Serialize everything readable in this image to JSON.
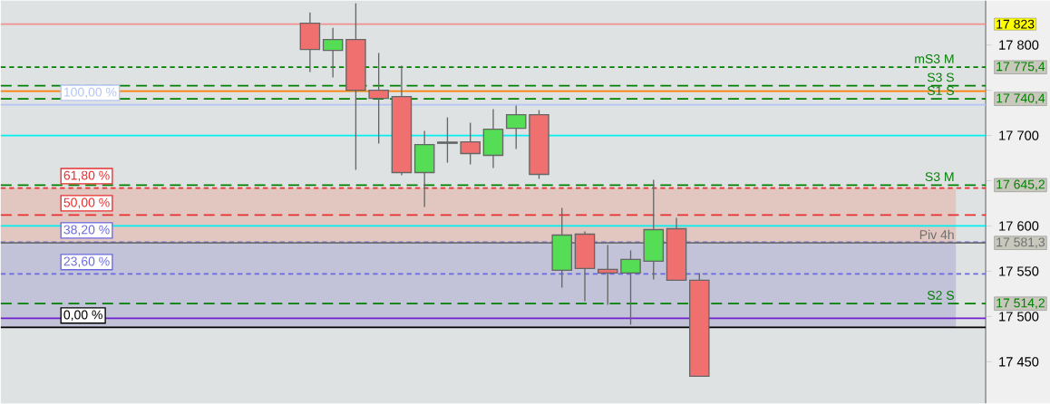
{
  "chart_data": {
    "type": "candlestick",
    "categories": [
      null,
      null,
      null,
      null,
      null,
      null,
      null,
      null,
      null,
      null,
      null,
      null,
      null,
      null,
      null,
      null,
      null,
      null,
      null,
      null,
      null,
      null,
      null,
      null,
      null,
      null,
      null,
      null,
      null,
      null,
      null,
      null,
      null,
      null,
      null,
      null,
      null,
      null,
      null,
      null,
      null,
      null,
      null
    ],
    "ohlc": [
      null,
      null,
      null,
      null,
      null,
      null,
      null,
      null,
      null,
      null,
      null,
      null,
      null,
      [
        17824,
        17836,
        17770,
        17795
      ],
      [
        17794,
        17819,
        17764,
        17806
      ],
      [
        17806,
        17846,
        17662,
        17750
      ],
      [
        17750,
        17791,
        17691,
        17741
      ],
      [
        17743,
        17777,
        17656,
        17659
      ],
      [
        17659,
        17705,
        17621,
        17690
      ],
      [
        17692,
        17720,
        17670,
        17692
      ],
      [
        17693,
        17714,
        17668,
        17680
      ],
      [
        17678,
        17729,
        17664,
        17707
      ],
      [
        17708,
        17733,
        17685,
        17723
      ],
      [
        17723,
        17728,
        17652,
        17657
      ],
      [
        17551,
        17620,
        17532,
        17590
      ],
      [
        17591,
        17594,
        17517,
        17553
      ],
      [
        17552,
        17579,
        17513,
        17548
      ],
      [
        17548,
        17573,
        17491,
        17563
      ],
      [
        17561,
        17651,
        17541,
        17596
      ],
      [
        17597,
        17609,
        17540,
        17540
      ],
      [
        17540,
        17548,
        17434,
        17434
      ],
      null,
      null,
      null,
      null,
      null,
      null,
      null,
      null,
      null,
      null,
      null,
      null
    ],
    "ylim": [
      17404,
      17849
    ],
    "yticks": [
      {
        "value": 17450,
        "label": "17 450"
      },
      {
        "value": 17500,
        "label": "17 500"
      },
      {
        "value": 17550,
        "label": "17 550"
      },
      {
        "value": 17600,
        "label": "17 600"
      },
      {
        "value": 17650,
        "label": null
      },
      {
        "value": 17700,
        "label": "17 700"
      },
      {
        "value": 17750,
        "label": null
      },
      {
        "value": 17800,
        "label": "17 800"
      }
    ],
    "bands": [
      {
        "axis": "y",
        "from": 17582,
        "to": 17642,
        "color": "#e2c6c0"
      },
      {
        "axis": "y",
        "from": 17488,
        "to": 17582,
        "color": "#c2c2d8"
      }
    ],
    "ref_lines": [
      {
        "axis": "y",
        "value": 17734,
        "color": "#b4c4f4",
        "line_style": "solid"
      },
      {
        "axis": "y",
        "value": 17642,
        "color": "#e83030",
        "line_style": "dotted"
      },
      {
        "axis": "y",
        "value": 17612,
        "color": "#e83030",
        "line_style": "dashed"
      },
      {
        "axis": "y",
        "value": 17582,
        "color": "#6a6ae0",
        "line_style": "dotted"
      },
      {
        "axis": "y",
        "value": 17547,
        "color": "#6a6ae0",
        "line_style": "dotted"
      },
      {
        "axis": "y",
        "value": 17488,
        "color": "#000000",
        "line_style": "solid"
      },
      {
        "axis": "y",
        "value": 17823,
        "color": "#f09090",
        "line_style": "solid"
      },
      {
        "axis": "y",
        "value": 17775.4,
        "label": "mS3 M",
        "color": "#008000",
        "line_style": "dotted"
      },
      {
        "axis": "y",
        "value": 17755,
        "label": "S3 S",
        "color": "#008000",
        "line_style": "dashed"
      },
      {
        "axis": "y",
        "value": 17749,
        "color": "#ff8000",
        "line_style": "solid"
      },
      {
        "axis": "y",
        "value": 17740.4,
        "label": "S1 S",
        "color": "#008000",
        "line_style": "dashed"
      },
      {
        "axis": "y",
        "value": 17700,
        "color": "#00f0f0",
        "line_style": "solid"
      },
      {
        "axis": "y",
        "value": 17645.2,
        "label": "S3 M",
        "color": "#008000",
        "line_style": "dashed"
      },
      {
        "axis": "y",
        "value": 17600,
        "color": "#00f0f0",
        "line_style": "solid"
      },
      {
        "axis": "y",
        "value": 17581.3,
        "label": "Piv 4h",
        "color": "#707070",
        "line_style": "solid"
      },
      {
        "axis": "y",
        "value": 17514.2,
        "label": "S2 S",
        "color": "#008000",
        "line_style": "dashed"
      },
      {
        "axis": "y",
        "value": 17498,
        "color": "#7020d0",
        "line_style": "solid"
      }
    ],
    "annotations": [
      "100,00 %",
      "61,80 %",
      "50,00 %",
      "38,20 %",
      "23,60 %",
      "0,00 %",
      "17 823",
      "17 775,4",
      "17 740,4",
      "17 645,2",
      "17 581,3",
      "17 514,2"
    ]
  }
}
